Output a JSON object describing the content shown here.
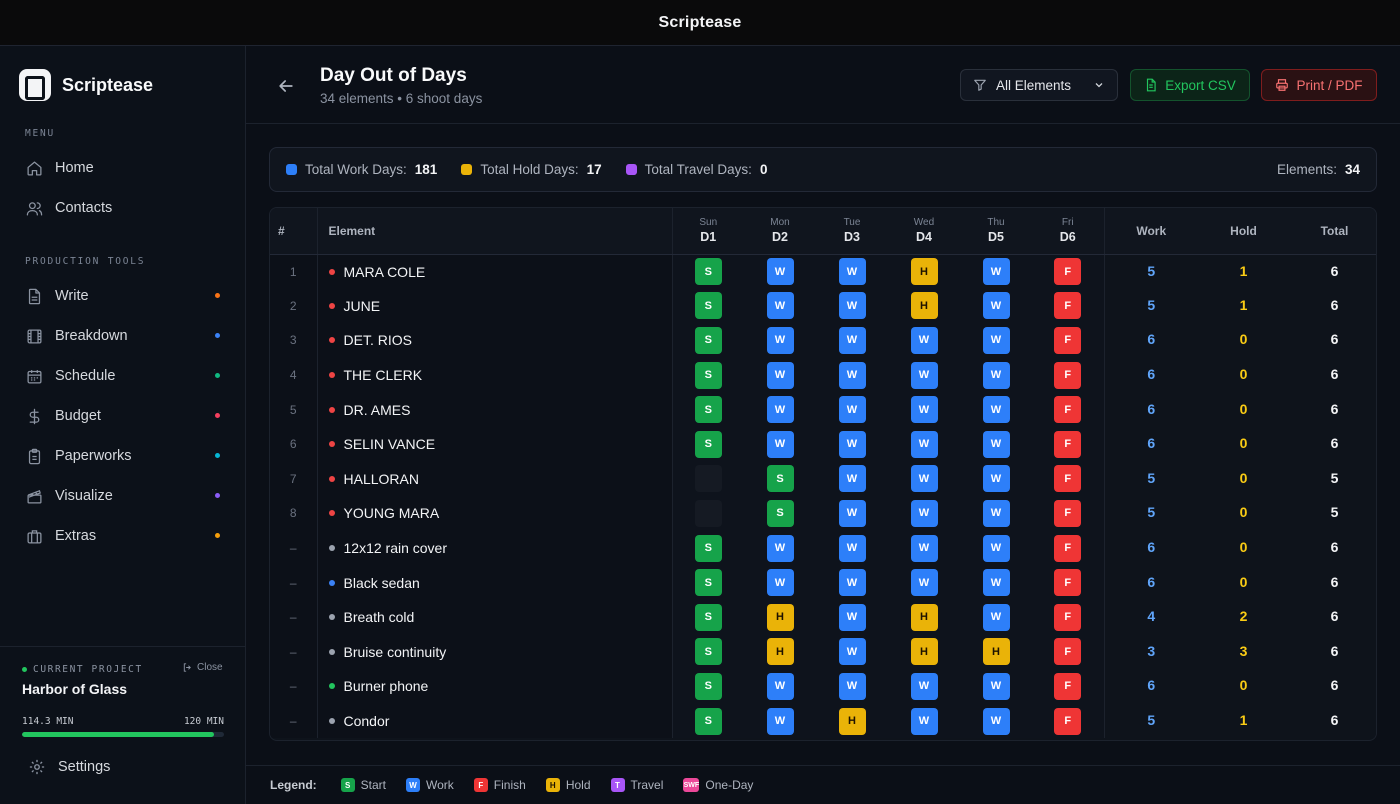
{
  "app": {
    "window_title": "Scriptease",
    "logo_text": "Scriptease"
  },
  "sidebar": {
    "menu_label": "MENU",
    "menu_items": [
      {
        "label": "Home",
        "icon": "home-icon"
      },
      {
        "label": "Contacts",
        "icon": "contacts-icon"
      }
    ],
    "tools_label": "PRODUCTION TOOLS",
    "tools": [
      {
        "label": "Write",
        "icon": "document-icon",
        "dot": "#f97316"
      },
      {
        "label": "Breakdown",
        "icon": "film-icon",
        "dot": "#3b82f6"
      },
      {
        "label": "Schedule",
        "icon": "calendar-icon",
        "dot": "#10b981"
      },
      {
        "label": "Budget",
        "icon": "dollar-icon",
        "dot": "#f43f5e"
      },
      {
        "label": "Paperworks",
        "icon": "clipboard-icon",
        "dot": "#06b6d4"
      },
      {
        "label": "Visualize",
        "icon": "clapper-icon",
        "dot": "#8b5cf6"
      },
      {
        "label": "Extras",
        "icon": "briefcase-icon",
        "dot": "#f59e0b"
      }
    ],
    "project": {
      "label": "CURRENT PROJECT",
      "close_label": "Close",
      "name": "Harbor of Glass",
      "minutes_used": "114.3 MIN",
      "minutes_total": "120 MIN",
      "progress": 0.9525
    },
    "settings_label": "Settings"
  },
  "header": {
    "title": "Day Out of Days",
    "subtitle": "34 elements • 6 shoot days",
    "filter_label": "All Elements",
    "export_csv_label": "Export CSV",
    "print_label": "Print / PDF"
  },
  "stats": {
    "work_label": "Total Work Days:",
    "work_value": "181",
    "hold_label": "Total Hold Days:",
    "hold_value": "17",
    "travel_label": "Total Travel Days:",
    "travel_value": "0",
    "elements_label": "Elements:",
    "elements_value": "34"
  },
  "table": {
    "headers": {
      "num": "#",
      "element": "Element",
      "work": "Work",
      "hold": "Hold",
      "total": "Total"
    },
    "days": [
      {
        "name": "Sun",
        "code": "D1"
      },
      {
        "name": "Mon",
        "code": "D2"
      },
      {
        "name": "Tue",
        "code": "D3"
      },
      {
        "name": "Wed",
        "code": "D4"
      },
      {
        "name": "Thu",
        "code": "D5"
      },
      {
        "name": "Fri",
        "code": "D6"
      }
    ],
    "rows": [
      {
        "num": "1",
        "name": "MARA COLE",
        "dot": "#ef4444",
        "days": [
          "S",
          "W",
          "W",
          "H",
          "W",
          "F"
        ],
        "work": "5",
        "hold": "1",
        "total": "6"
      },
      {
        "num": "2",
        "name": "JUNE",
        "dot": "#ef4444",
        "days": [
          "S",
          "W",
          "W",
          "H",
          "W",
          "F"
        ],
        "work": "5",
        "hold": "1",
        "total": "6"
      },
      {
        "num": "3",
        "name": "DET. RIOS",
        "dot": "#ef4444",
        "days": [
          "S",
          "W",
          "W",
          "W",
          "W",
          "F"
        ],
        "work": "6",
        "hold": "0",
        "total": "6"
      },
      {
        "num": "4",
        "name": "THE CLERK",
        "dot": "#ef4444",
        "days": [
          "S",
          "W",
          "W",
          "W",
          "W",
          "F"
        ],
        "work": "6",
        "hold": "0",
        "total": "6"
      },
      {
        "num": "5",
        "name": "DR. AMES",
        "dot": "#ef4444",
        "days": [
          "S",
          "W",
          "W",
          "W",
          "W",
          "F"
        ],
        "work": "6",
        "hold": "0",
        "total": "6"
      },
      {
        "num": "6",
        "name": "SELIN VANCE",
        "dot": "#ef4444",
        "days": [
          "S",
          "W",
          "W",
          "W",
          "W",
          "F"
        ],
        "work": "6",
        "hold": "0",
        "total": "6"
      },
      {
        "num": "7",
        "name": "HALLORAN",
        "dot": "#ef4444",
        "days": [
          "",
          "S",
          "W",
          "W",
          "W",
          "F"
        ],
        "work": "5",
        "hold": "0",
        "total": "5"
      },
      {
        "num": "8",
        "name": "YOUNG MARA",
        "dot": "#ef4444",
        "days": [
          "",
          "S",
          "W",
          "W",
          "W",
          "F"
        ],
        "work": "5",
        "hold": "0",
        "total": "5"
      },
      {
        "num": "–",
        "name": "12x12 rain cover",
        "dot": "#9ca3af",
        "days": [
          "S",
          "W",
          "W",
          "W",
          "W",
          "F"
        ],
        "work": "6",
        "hold": "0",
        "total": "6"
      },
      {
        "num": "–",
        "name": "Black sedan",
        "dot": "#3b82f6",
        "days": [
          "S",
          "W",
          "W",
          "W",
          "W",
          "F"
        ],
        "work": "6",
        "hold": "0",
        "total": "6"
      },
      {
        "num": "–",
        "name": "Breath cold",
        "dot": "#9ca3af",
        "days": [
          "S",
          "H",
          "W",
          "H",
          "W",
          "F"
        ],
        "work": "4",
        "hold": "2",
        "total": "6"
      },
      {
        "num": "–",
        "name": "Bruise continuity",
        "dot": "#9ca3af",
        "days": [
          "S",
          "H",
          "W",
          "H",
          "H",
          "F"
        ],
        "work": "3",
        "hold": "3",
        "total": "6"
      },
      {
        "num": "–",
        "name": "Burner phone",
        "dot": "#22c55e",
        "days": [
          "S",
          "W",
          "W",
          "W",
          "W",
          "F"
        ],
        "work": "6",
        "hold": "0",
        "total": "6"
      },
      {
        "num": "–",
        "name": "Condor",
        "dot": "#9ca3af",
        "days": [
          "S",
          "W",
          "H",
          "W",
          "W",
          "F"
        ],
        "work": "5",
        "hold": "1",
        "total": "6"
      }
    ]
  },
  "legend": {
    "title": "Legend:",
    "items": [
      {
        "code": "S",
        "label": "Start",
        "color": "#16a34a"
      },
      {
        "code": "W",
        "label": "Work",
        "color": "#2d7ff9"
      },
      {
        "code": "F",
        "label": "Finish",
        "color": "#ef3535"
      },
      {
        "code": "H",
        "label": "Hold",
        "color": "#eab308"
      },
      {
        "code": "T",
        "label": "Travel",
        "color": "#a855f7"
      },
      {
        "code": "SWF",
        "label": "One-Day",
        "color": "#ec4899"
      }
    ]
  },
  "colors": {
    "work": "#2d7ff9",
    "hold": "#eab308",
    "travel": "#a855f7"
  }
}
